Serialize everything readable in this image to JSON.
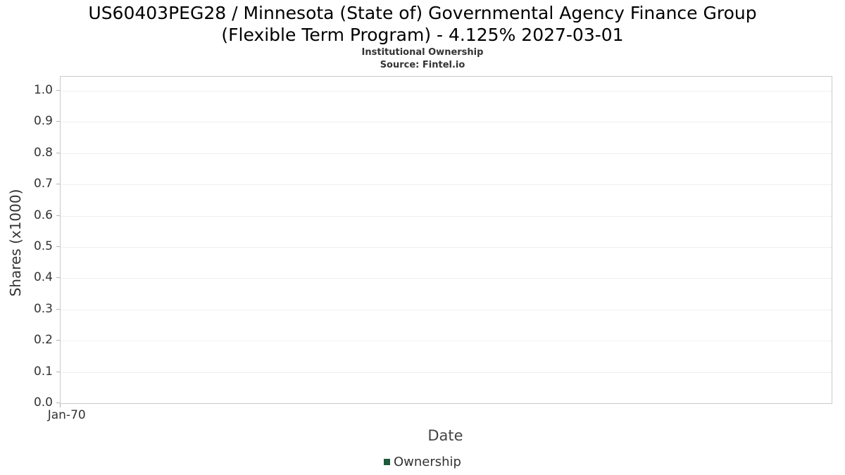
{
  "chart": {
    "title_line1": "US60403PEG28 / Minnesota (State of) Governmental Agency Finance Group",
    "title_line2": "(Flexible Term Program) - 4.125% 2027-03-01",
    "subtitle": "Institutional Ownership",
    "source": "Source: Fintel.io",
    "ylabel": "Shares (x1000)",
    "xlabel": "Date",
    "legend": {
      "label": "Ownership",
      "color": "#1e5b3a"
    }
  },
  "chart_data": {
    "type": "line",
    "title": "US60403PEG28 / Minnesota (State of) Governmental Agency Finance Group (Flexible Term Program) - 4.125% 2027-03-01",
    "subtitle": "Institutional Ownership",
    "source": "Source: Fintel.io",
    "xlabel": "Date",
    "ylabel": "Shares (x1000)",
    "x_tick_labels": [
      "Jan-70"
    ],
    "y_tick_labels": [
      "0.0",
      "0.1",
      "0.2",
      "0.3",
      "0.4",
      "0.5",
      "0.6",
      "0.7",
      "0.8",
      "0.9",
      "1.0"
    ],
    "ylim": [
      0,
      1.05
    ],
    "grid": true,
    "legend_position": "bottom",
    "series": [
      {
        "name": "Ownership",
        "color": "#1e5b3a",
        "values": []
      }
    ]
  }
}
